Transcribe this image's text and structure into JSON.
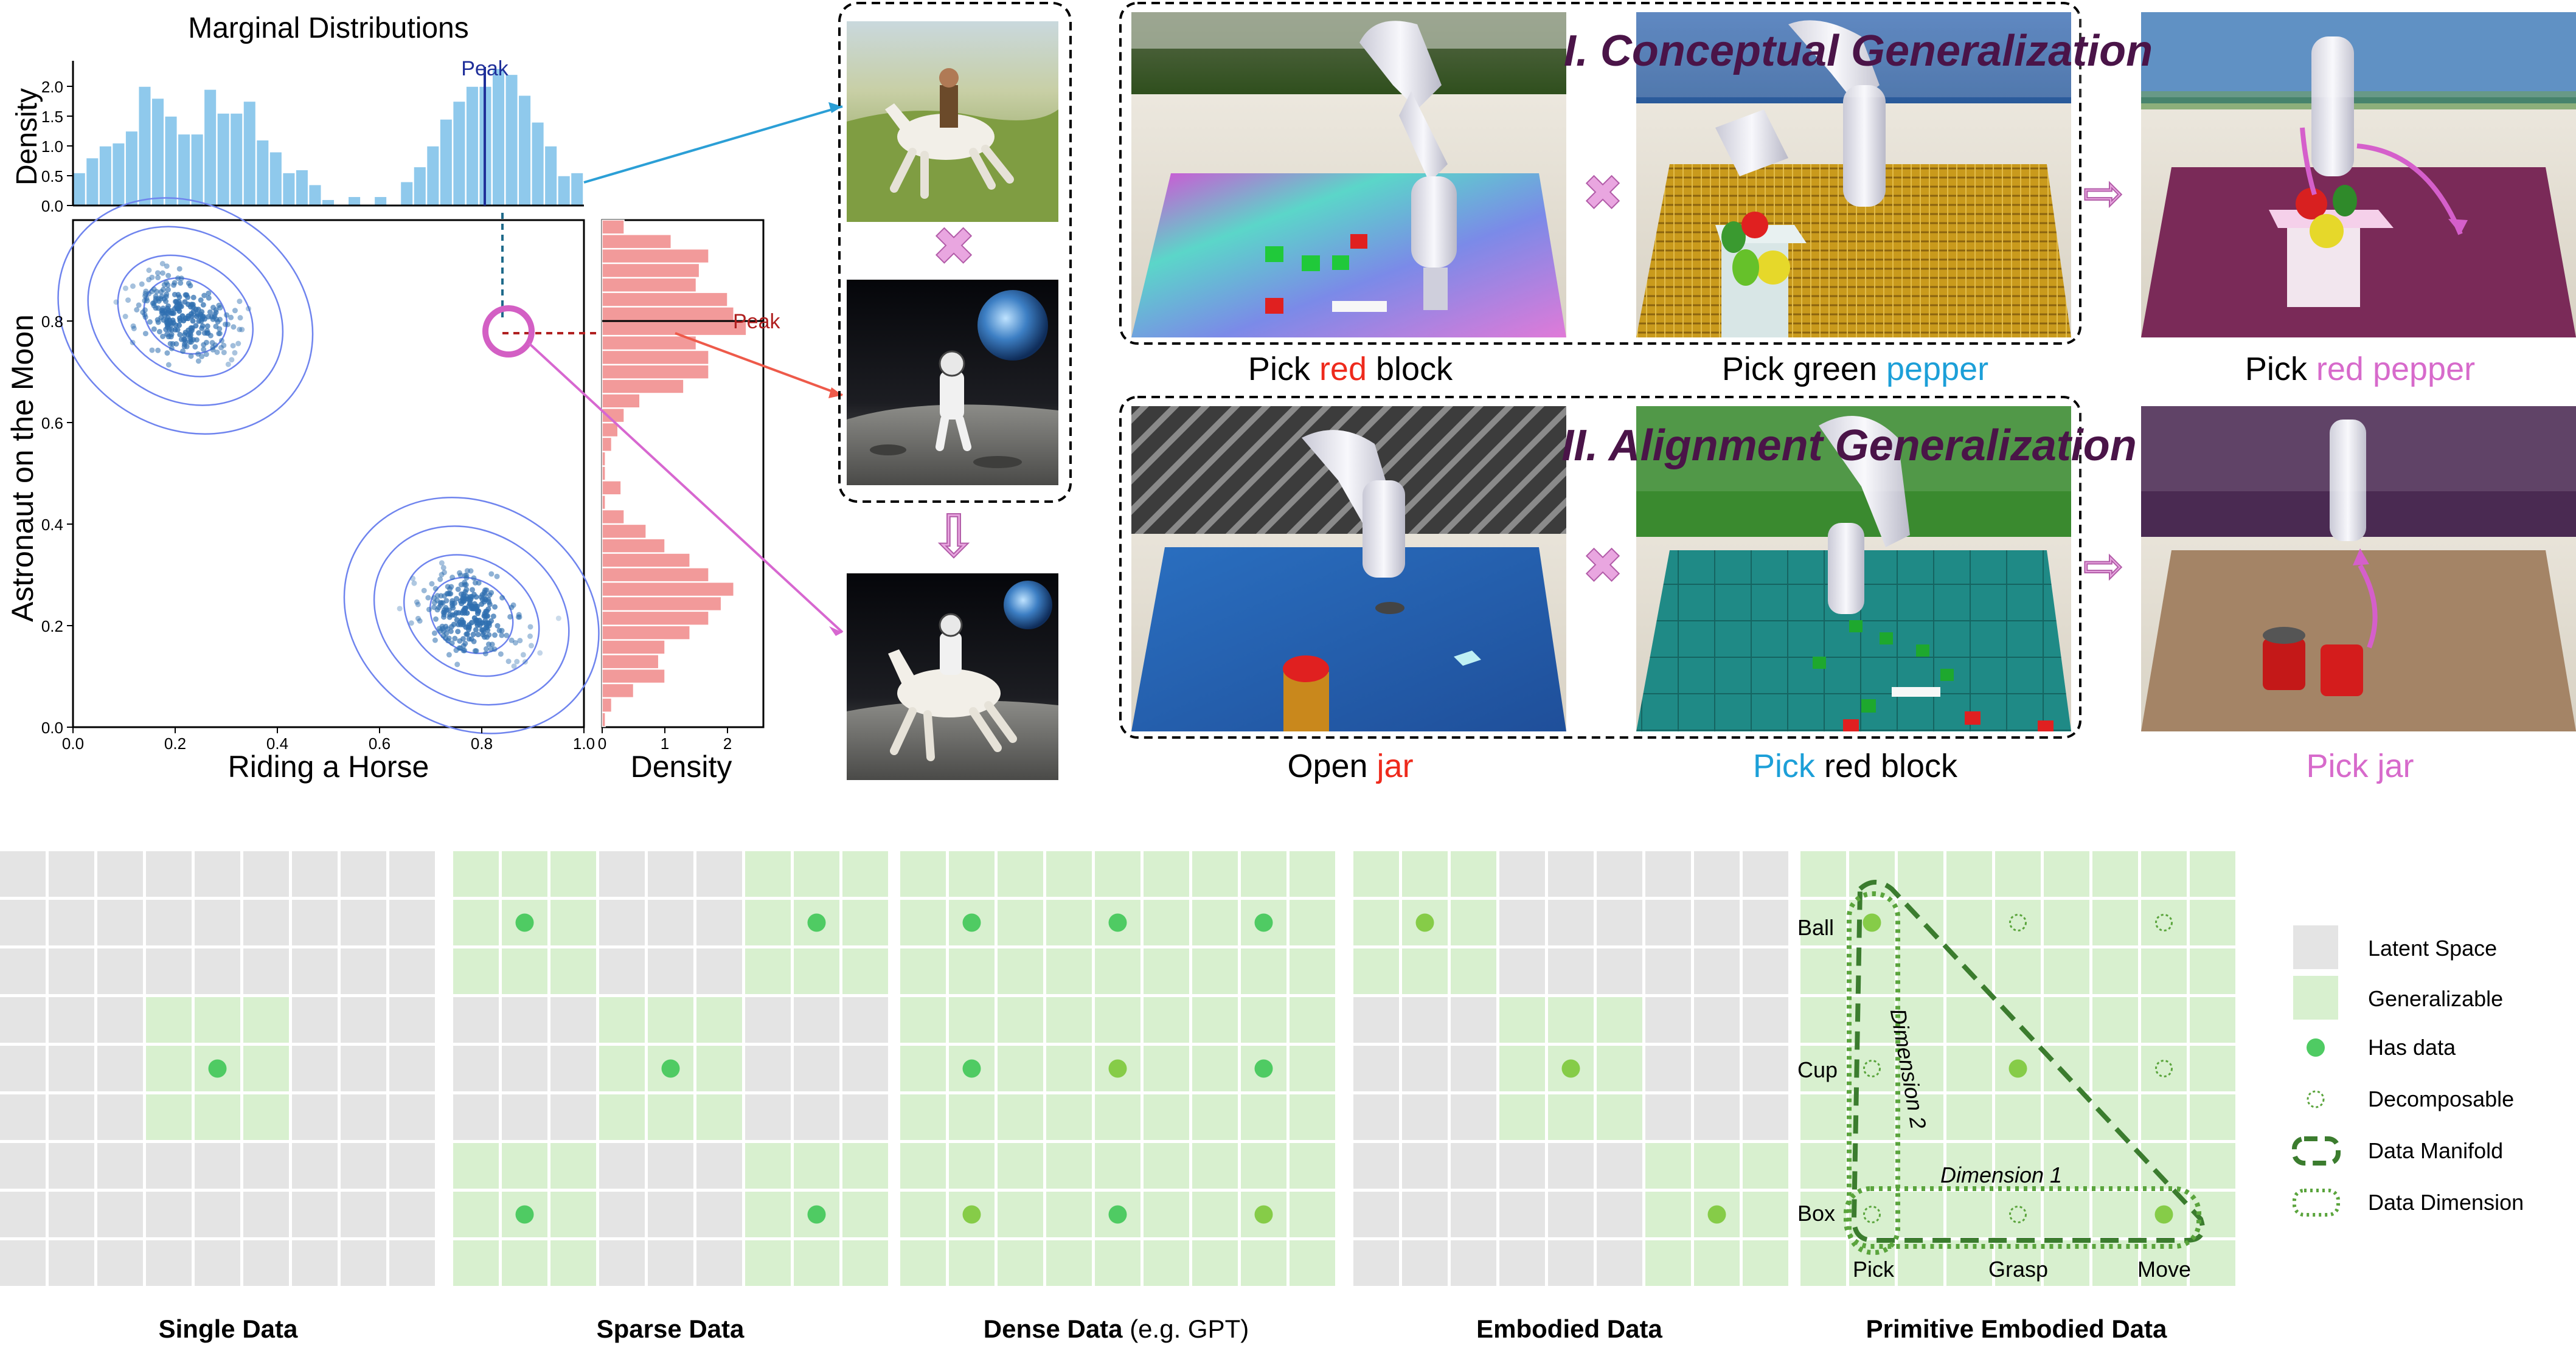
{
  "marginal": {
    "title": "Marginal Distributions",
    "top_ylabel": "Density",
    "top_yticks": [
      "0.0",
      "0.5",
      "1.0",
      "1.5",
      "2.0"
    ],
    "main_xlabel": "Riding a Horse",
    "main_ylabel": "Astronaut on the Moon",
    "main_xticks": [
      "0.0",
      "0.2",
      "0.4",
      "0.6",
      "0.8",
      "1.0"
    ],
    "main_yticks": [
      "0.0",
      "0.2",
      "0.4",
      "0.6",
      "0.8"
    ],
    "right_xlabel": "Density",
    "right_xticks": [
      "0",
      "1",
      "2"
    ],
    "peak_x_label": "Peak",
    "peak_y_label": "Peak",
    "top_hist_values": [
      0.55,
      0.8,
      1.0,
      1.05,
      1.25,
      2.0,
      1.8,
      1.5,
      1.2,
      1.2,
      1.95,
      1.55,
      1.55,
      1.75,
      1.1,
      0.9,
      0.55,
      0.6,
      0.35,
      0.1,
      0.02,
      0.15,
      0.02,
      0.15,
      0.02,
      0.4,
      0.65,
      1.0,
      1.45,
      1.75,
      2.0,
      2.0,
      2.3,
      2.2,
      1.85,
      1.4,
      1.0,
      0.5,
      0.55
    ],
    "right_hist_values": [
      0.35,
      1.1,
      1.7,
      1.55,
      1.5,
      2.0,
      2.1,
      2.3,
      1.5,
      1.7,
      1.7,
      1.3,
      0.6,
      0.35,
      0.25,
      0.15,
      0.05,
      0.05,
      0.3,
      0.05,
      0.35,
      0.7,
      1.0,
      1.4,
      1.7,
      2.1,
      1.9,
      1.7,
      1.4,
      1.0,
      0.9,
      1.0,
      0.5,
      0.15,
      0.05
    ],
    "colors": {
      "top_hist": "#8fc9ec",
      "right_hist": "#f29a9a",
      "scatter": "#2f6fb0",
      "contour": "#6f84ee",
      "peak_x": "#1f2f9a",
      "peak_y": "#b02020",
      "circle": "#d35fc4"
    }
  },
  "images": {
    "multiply_glyph": "✖",
    "arrow_glyph": "⇩"
  },
  "robot": {
    "title1": "I. Conceptual Generalization",
    "title2": "II. Alignment Generalization",
    "row1": [
      {
        "parts": [
          [
            "Pick ",
            "#000000"
          ],
          [
            "red",
            "#ee2a1c"
          ],
          [
            " block",
            "#000000"
          ]
        ]
      },
      {
        "parts": [
          [
            "Pick green ",
            "#000000"
          ],
          [
            "pepper",
            "#1c9fd8"
          ]
        ]
      },
      {
        "parts": [
          [
            "Pick ",
            "#000000"
          ],
          [
            "red pepper",
            "#d76acb"
          ]
        ]
      }
    ],
    "row2": [
      {
        "parts": [
          [
            "Open ",
            "#000000"
          ],
          [
            "jar",
            "#ee2a1c"
          ]
        ]
      },
      {
        "parts": [
          [
            "Pick",
            "#1c9fd8"
          ],
          [
            " red block",
            "#000000"
          ]
        ]
      },
      {
        "parts": [
          [
            "Pick jar",
            "#d76acb"
          ]
        ]
      }
    ],
    "title_color": "#4a1448",
    "symbol_color": "#e9a6e0"
  },
  "grids": {
    "labels": [
      "Single Data",
      "Sparse Data",
      "Dense Data",
      "Embodied Data",
      "Primitive Embodied Data"
    ],
    "dense_suffix": " (e.g. GPT)",
    "primitive": {
      "row_labels": [
        "Ball",
        "Cup",
        "Box"
      ],
      "col_labels": [
        "Pick",
        "Grasp",
        "Move"
      ],
      "dim1": "Dimension 1",
      "dim2": "Dimension 2"
    }
  },
  "legend": {
    "items": [
      {
        "label": "Latent Space",
        "kind": "latent"
      },
      {
        "label": "Generalizable",
        "kind": "general"
      },
      {
        "label": "Has data",
        "kind": "dot"
      },
      {
        "label": "Decomposable",
        "kind": "dotted"
      },
      {
        "label": "Data Manifold",
        "kind": "manifold"
      },
      {
        "label": "Data Dimension",
        "kind": "dimension"
      }
    ]
  },
  "colors": {
    "latent": "#e4e4e4",
    "general": "#d8f0cf",
    "dot": "#4fcb63",
    "dot_light": "#86cc48",
    "manifold": "#3b7c2e",
    "dimension": "#5aa43c"
  }
}
